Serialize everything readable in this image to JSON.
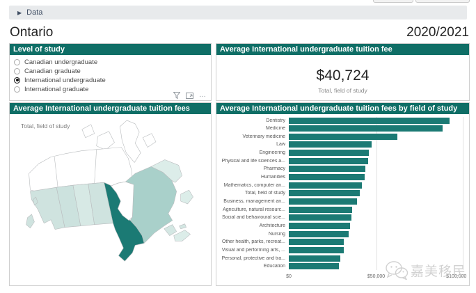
{
  "top": {
    "data_label": "Data",
    "collapse_arrow": "▶"
  },
  "header": {
    "title": "Ontario",
    "period": "2020/2021"
  },
  "level_of_study": {
    "title": "Level of study",
    "options": [
      {
        "label": "Canadian undergraduate",
        "selected": false
      },
      {
        "label": "Canadian graduate",
        "selected": false
      },
      {
        "label": "International undergraduate",
        "selected": true
      },
      {
        "label": "International graduate",
        "selected": false
      }
    ]
  },
  "fee_card": {
    "title": "Average International undergraduate tuition fee",
    "value": "$40,724",
    "subtitle": "Total, field of study"
  },
  "map_panel": {
    "title": "Average International undergraduate tuition fees",
    "subtitle": "Total, field of study",
    "regions": {
      "territories": "#ffffff",
      "arctic-islands": "#ffffff",
      "british-columbia": "#cfe3df",
      "bc-islands": "#cfe3df",
      "alberta": "#cce2de",
      "saskatchewan": "#d7e9e5",
      "manitoba": "#cfe3df",
      "ontario": "#1b7a74",
      "quebec": "#a9d0ca",
      "labrador": "#dcede9",
      "newfoundland": "#dcede9",
      "new-brunswick": "#d4e7e3",
      "nova-scotia": "#dcede9",
      "prince-edward-island": "#d4e7e3",
      "hudson-bay": "#ffffff"
    }
  },
  "chart_panel": {
    "title": "Average International undergraduate tuition fees by field of study"
  },
  "chart_data": {
    "type": "bar",
    "orientation": "horizontal",
    "title": "Average International undergraduate tuition fees by field of study",
    "categories": [
      "Dentistry",
      "Medicine",
      "Veterinary medicine",
      "Law",
      "Engineering",
      "Physical and life sciences a...",
      "Pharmacy",
      "Humanities",
      "Mathematics, computer an...",
      "Total, field of study",
      "Business, management an...",
      "Agriculture, natural resourc...",
      "Social and behavioural scie...",
      "Architecture",
      "Nursing",
      "Other health, parks, recreat...",
      "Visual and performing arts, ...",
      "Personal, protective and tra...",
      "Education"
    ],
    "values": [
      92000,
      88000,
      62000,
      47500,
      46000,
      45500,
      44000,
      43500,
      42000,
      40724,
      39000,
      36200,
      35700,
      35000,
      34200,
      31500,
      31300,
      29500,
      28800
    ],
    "x_ticks": [
      {
        "label": "$0",
        "value": 0
      },
      {
        "label": "$50,000",
        "value": 50000
      },
      {
        "label": "$100,000",
        "value": 100000
      }
    ],
    "xlim": [
      0,
      100000
    ],
    "bar_color": "#1b7a74",
    "grid": "vertical",
    "legend": "none"
  },
  "watermark": {
    "icon": "wechat-icon",
    "text": "嘉美移民"
  },
  "colors": {
    "accent_teal": "#0f6e66",
    "bar_teal": "#1b7a74",
    "panel_border": "#cfcfcf",
    "collapse_bar_bg": "#e8eaec"
  }
}
